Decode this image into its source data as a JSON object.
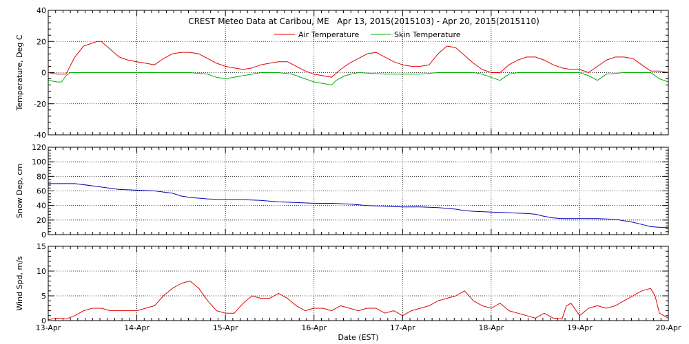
{
  "chart_data": {
    "title": "CREST Meteo Data at Caribou, ME   Apr 13, 2015(2015103) - Apr 20, 2015(2015110)",
    "xlabel": "Date (EST)",
    "x_ticks": [
      "13-Apr",
      "14-Apr",
      "15-Apr",
      "16-Apr",
      "17-Apr",
      "18-Apr",
      "19-Apr",
      "20-Apr"
    ],
    "x_range_days": [
      0,
      7
    ],
    "grid": true,
    "legend_position": "top-center",
    "panels": [
      {
        "type": "line",
        "ylabel": "Temperature, Deg C",
        "ylim": [
          -40,
          40
        ],
        "yticks": [
          -40,
          -20,
          0,
          20,
          40
        ],
        "series": [
          {
            "name": "Air Temperature",
            "color": "#e00000",
            "points": [
              [
                0,
                0
              ],
              [
                0.1,
                -1
              ],
              [
                0.2,
                -1
              ],
              [
                0.3,
                10
              ],
              [
                0.4,
                17
              ],
              [
                0.5,
                19
              ],
              [
                0.55,
                20
              ],
              [
                0.6,
                20
              ],
              [
                0.7,
                15
              ],
              [
                0.8,
                10
              ],
              [
                0.9,
                8
              ],
              [
                1.0,
                7
              ],
              [
                1.1,
                6
              ],
              [
                1.2,
                5
              ],
              [
                1.3,
                9
              ],
              [
                1.4,
                12
              ],
              [
                1.5,
                13
              ],
              [
                1.6,
                13
              ],
              [
                1.7,
                12
              ],
              [
                1.8,
                9
              ],
              [
                1.9,
                6
              ],
              [
                2.0,
                4
              ],
              [
                2.1,
                3
              ],
              [
                2.2,
                2
              ],
              [
                2.3,
                3
              ],
              [
                2.4,
                5
              ],
              [
                2.5,
                6
              ],
              [
                2.6,
                7
              ],
              [
                2.7,
                7
              ],
              [
                2.8,
                4
              ],
              [
                2.9,
                1
              ],
              [
                3.0,
                -1
              ],
              [
                3.1,
                -2
              ],
              [
                3.2,
                -3
              ],
              [
                3.3,
                2
              ],
              [
                3.4,
                6
              ],
              [
                3.5,
                9
              ],
              [
                3.6,
                12
              ],
              [
                3.7,
                13
              ],
              [
                3.8,
                10
              ],
              [
                3.9,
                7
              ],
              [
                4.0,
                5
              ],
              [
                4.1,
                4
              ],
              [
                4.2,
                4
              ],
              [
                4.3,
                5
              ],
              [
                4.4,
                12
              ],
              [
                4.5,
                17
              ],
              [
                4.6,
                16
              ],
              [
                4.7,
                11
              ],
              [
                4.8,
                6
              ],
              [
                4.9,
                2
              ],
              [
                5.0,
                0
              ],
              [
                5.1,
                0
              ],
              [
                5.2,
                5
              ],
              [
                5.3,
                8
              ],
              [
                5.4,
                10
              ],
              [
                5.5,
                10
              ],
              [
                5.6,
                8
              ],
              [
                5.7,
                5
              ],
              [
                5.8,
                3
              ],
              [
                5.9,
                2
              ],
              [
                6.0,
                2
              ],
              [
                6.1,
                0
              ],
              [
                6.2,
                4
              ],
              [
                6.3,
                8
              ],
              [
                6.4,
                10
              ],
              [
                6.5,
                10
              ],
              [
                6.6,
                9
              ],
              [
                6.7,
                5
              ],
              [
                6.8,
                1
              ],
              [
                6.9,
                1
              ],
              [
                7.0,
                0
              ]
            ]
          },
          {
            "name": "Skin Temperature",
            "color": "#00b000",
            "points": [
              [
                0,
                -5
              ],
              [
                0.1,
                -6
              ],
              [
                0.15,
                -6
              ],
              [
                0.2,
                -2
              ],
              [
                0.25,
                0
              ],
              [
                0.5,
                0
              ],
              [
                0.8,
                0
              ],
              [
                0.9,
                0
              ],
              [
                1.0,
                0
              ],
              [
                1.3,
                0
              ],
              [
                1.6,
                0
              ],
              [
                1.8,
                -1
              ],
              [
                1.9,
                -3
              ],
              [
                2.0,
                -4
              ],
              [
                2.1,
                -3
              ],
              [
                2.2,
                -2
              ],
              [
                2.4,
                0
              ],
              [
                2.6,
                0
              ],
              [
                2.75,
                -1
              ],
              [
                2.8,
                -2
              ],
              [
                2.9,
                -4
              ],
              [
                3.0,
                -6
              ],
              [
                3.1,
                -7
              ],
              [
                3.2,
                -8
              ],
              [
                3.25,
                -5
              ],
              [
                3.35,
                -2
              ],
              [
                3.5,
                0
              ],
              [
                3.8,
                -1
              ],
              [
                4.0,
                -1
              ],
              [
                4.2,
                -1
              ],
              [
                4.4,
                0
              ],
              [
                4.8,
                0
              ],
              [
                4.9,
                -1
              ],
              [
                5.0,
                -3
              ],
              [
                5.1,
                -5
              ],
              [
                5.2,
                -1
              ],
              [
                5.3,
                0
              ],
              [
                5.8,
                0
              ],
              [
                6.0,
                0
              ],
              [
                6.1,
                -2
              ],
              [
                6.2,
                -5
              ],
              [
                6.3,
                -1
              ],
              [
                6.5,
                0
              ],
              [
                6.8,
                0
              ],
              [
                6.9,
                -4
              ],
              [
                7.0,
                -6
              ]
            ]
          }
        ]
      },
      {
        "type": "line",
        "ylabel": "Snow Dep, cm",
        "ylim": [
          0,
          120
        ],
        "yticks": [
          0,
          20,
          40,
          60,
          80,
          100,
          120
        ],
        "series": [
          {
            "name": "",
            "color": "#0000b4",
            "points": [
              [
                0,
                70
              ],
              [
                0.3,
                70
              ],
              [
                0.5,
                67
              ],
              [
                0.8,
                62
              ],
              [
                1.0,
                61
              ],
              [
                1.2,
                60
              ],
              [
                1.4,
                57
              ],
              [
                1.5,
                53
              ],
              [
                1.6,
                51
              ],
              [
                1.8,
                49
              ],
              [
                2.0,
                48
              ],
              [
                2.2,
                48
              ],
              [
                2.4,
                47
              ],
              [
                2.6,
                45
              ],
              [
                2.8,
                44
              ],
              [
                3.0,
                43
              ],
              [
                3.2,
                43
              ],
              [
                3.4,
                42
              ],
              [
                3.6,
                40
              ],
              [
                3.8,
                39
              ],
              [
                4.0,
                38
              ],
              [
                4.2,
                38
              ],
              [
                4.4,
                37
              ],
              [
                4.6,
                35
              ],
              [
                4.7,
                33
              ],
              [
                4.8,
                32
              ],
              [
                5.0,
                31
              ],
              [
                5.2,
                30
              ],
              [
                5.4,
                29
              ],
              [
                5.5,
                28
              ],
              [
                5.6,
                25
              ],
              [
                5.7,
                23
              ],
              [
                5.8,
                22
              ],
              [
                6.0,
                22
              ],
              [
                6.2,
                22
              ],
              [
                6.4,
                21
              ],
              [
                6.5,
                19
              ],
              [
                6.6,
                17
              ],
              [
                6.7,
                14
              ],
              [
                6.8,
                11
              ],
              [
                6.9,
                10
              ],
              [
                7.0,
                10
              ]
            ]
          }
        ]
      },
      {
        "type": "line",
        "ylabel": "Wind Spd, m/s",
        "ylim": [
          0,
          15
        ],
        "yticks": [
          0,
          5,
          10,
          15
        ],
        "series": [
          {
            "name": "",
            "color": "#e00000",
            "points": [
              [
                0,
                0.2
              ],
              [
                0.1,
                0.5
              ],
              [
                0.2,
                0.3
              ],
              [
                0.3,
                1.0
              ],
              [
                0.4,
                2.0
              ],
              [
                0.5,
                2.5
              ],
              [
                0.6,
                2.5
              ],
              [
                0.7,
                2.0
              ],
              [
                0.8,
                2.0
              ],
              [
                0.9,
                2.0
              ],
              [
                1.0,
                2.0
              ],
              [
                1.1,
                2.5
              ],
              [
                1.2,
                3.0
              ],
              [
                1.3,
                5.0
              ],
              [
                1.4,
                6.5
              ],
              [
                1.5,
                7.5
              ],
              [
                1.6,
                8.0
              ],
              [
                1.7,
                6.5
              ],
              [
                1.8,
                4.0
              ],
              [
                1.9,
                2.0
              ],
              [
                2.0,
                1.5
              ],
              [
                2.1,
                1.5
              ],
              [
                2.2,
                3.5
              ],
              [
                2.3,
                5.0
              ],
              [
                2.4,
                4.5
              ],
              [
                2.5,
                4.5
              ],
              [
                2.6,
                5.5
              ],
              [
                2.7,
                4.5
              ],
              [
                2.8,
                3.0
              ],
              [
                2.9,
                2.0
              ],
              [
                3.0,
                2.5
              ],
              [
                3.1,
                2.5
              ],
              [
                3.2,
                2.0
              ],
              [
                3.3,
                3.0
              ],
              [
                3.4,
                2.5
              ],
              [
                3.5,
                2.0
              ],
              [
                3.6,
                2.5
              ],
              [
                3.7,
                2.5
              ],
              [
                3.8,
                1.5
              ],
              [
                3.9,
                2.0
              ],
              [
                4.0,
                1.0
              ],
              [
                4.1,
                2.0
              ],
              [
                4.2,
                2.5
              ],
              [
                4.3,
                3.0
              ],
              [
                4.4,
                4.0
              ],
              [
                4.5,
                4.5
              ],
              [
                4.6,
                5.0
              ],
              [
                4.7,
                6.0
              ],
              [
                4.8,
                4.0
              ],
              [
                4.9,
                3.0
              ],
              [
                5.0,
                2.5
              ],
              [
                5.1,
                3.5
              ],
              [
                5.2,
                2.0
              ],
              [
                5.3,
                1.5
              ],
              [
                5.4,
                1.0
              ],
              [
                5.5,
                0.5
              ],
              [
                5.6,
                1.5
              ],
              [
                5.7,
                0.5
              ],
              [
                5.8,
                0.3
              ],
              [
                5.85,
                3.0
              ],
              [
                5.9,
                3.5
              ],
              [
                6.0,
                1.0
              ],
              [
                6.1,
                2.5
              ],
              [
                6.2,
                3.0
              ],
              [
                6.3,
                2.5
              ],
              [
                6.4,
                3.0
              ],
              [
                6.5,
                4.0
              ],
              [
                6.6,
                5.0
              ],
              [
                6.7,
                6.0
              ],
              [
                6.8,
                6.5
              ],
              [
                6.85,
                5.0
              ],
              [
                6.9,
                1.5
              ],
              [
                7.0,
                0.5
              ]
            ]
          }
        ]
      }
    ]
  }
}
